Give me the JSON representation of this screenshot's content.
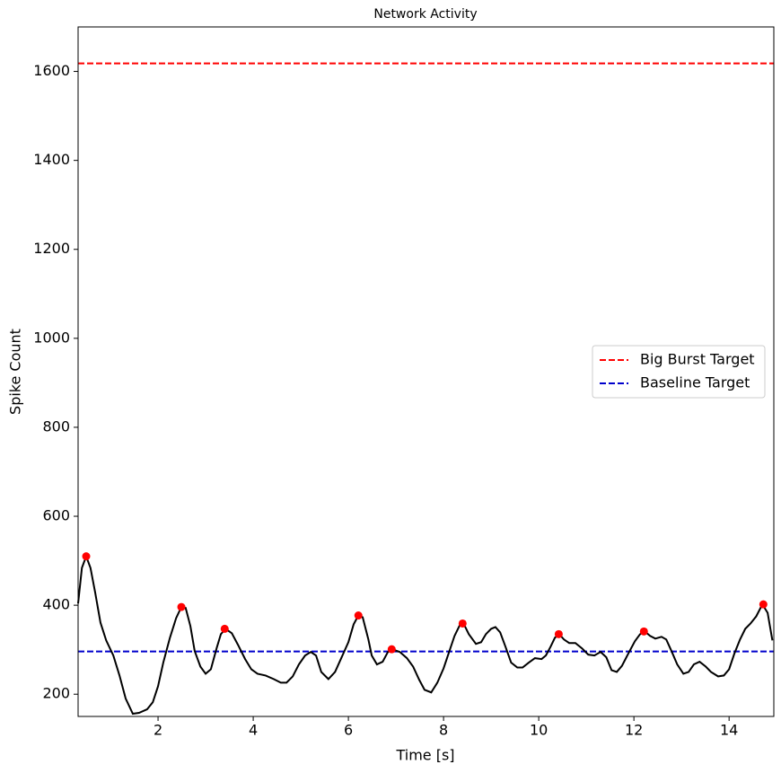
{
  "chart_data": {
    "type": "line",
    "title": "Network Activity",
    "x_label": "Time [s]",
    "y_label": "Spike Count",
    "x": [
      0.32,
      0.4,
      0.49,
      0.58,
      0.68,
      0.79,
      0.91,
      1.06,
      1.19,
      1.32,
      1.47,
      1.6,
      1.77,
      1.89,
      2.0,
      2.11,
      2.25,
      2.38,
      2.49,
      2.58,
      2.68,
      2.77,
      2.89,
      3.0,
      3.11,
      3.23,
      3.32,
      3.42,
      3.55,
      3.68,
      3.83,
      3.96,
      4.09,
      4.26,
      4.43,
      4.58,
      4.7,
      4.83,
      4.96,
      5.09,
      5.21,
      5.32,
      5.43,
      5.58,
      5.72,
      5.85,
      6.0,
      6.11,
      6.21,
      6.3,
      6.42,
      6.49,
      6.6,
      6.72,
      6.83,
      6.92,
      7.08,
      7.23,
      7.36,
      7.49,
      7.6,
      7.74,
      7.87,
      8.0,
      8.11,
      8.23,
      8.34,
      8.42,
      8.53,
      8.68,
      8.79,
      8.89,
      9.0,
      9.09,
      9.19,
      9.3,
      9.42,
      9.55,
      9.66,
      9.79,
      9.92,
      10.06,
      10.15,
      10.25,
      10.34,
      10.43,
      10.53,
      10.64,
      10.77,
      10.91,
      11.04,
      11.17,
      11.3,
      11.42,
      11.53,
      11.64,
      11.75,
      11.89,
      12.02,
      12.13,
      12.23,
      12.34,
      12.45,
      12.58,
      12.68,
      12.79,
      12.91,
      13.04,
      13.15,
      13.26,
      13.38,
      13.51,
      13.62,
      13.77,
      13.89,
      14.0,
      14.11,
      14.23,
      14.34,
      14.45,
      14.57,
      14.7,
      14.81,
      14.91
    ],
    "values": [
      404,
      484,
      510,
      484,
      428,
      361,
      321,
      287,
      242,
      190,
      156,
      158,
      166,
      182,
      218,
      271,
      327,
      371,
      396,
      394,
      353,
      297,
      262,
      246,
      256,
      303,
      335,
      347,
      337,
      311,
      279,
      256,
      246,
      242,
      234,
      226,
      226,
      240,
      267,
      287,
      295,
      287,
      250,
      234,
      250,
      281,
      317,
      357,
      377,
      373,
      323,
      287,
      267,
      273,
      295,
      301,
      295,
      281,
      262,
      232,
      210,
      204,
      226,
      258,
      293,
      331,
      355,
      359,
      335,
      313,
      317,
      335,
      347,
      351,
      339,
      307,
      271,
      260,
      260,
      271,
      281,
      279,
      287,
      307,
      327,
      335,
      323,
      315,
      315,
      303,
      289,
      287,
      295,
      283,
      254,
      250,
      264,
      293,
      319,
      335,
      341,
      331,
      325,
      329,
      323,
      297,
      267,
      246,
      250,
      267,
      273,
      262,
      250,
      240,
      242,
      256,
      291,
      323,
      347,
      359,
      375,
      402,
      383,
      321
    ],
    "color": "#000000",
    "peaks": {
      "x": [
        0.49,
        2.49,
        3.4,
        6.21,
        6.91,
        8.4,
        10.42,
        12.21,
        14.72
      ],
      "values": [
        510,
        396,
        347,
        377,
        301,
        359,
        335,
        341,
        402
      ],
      "color": "#ff0000"
    },
    "hlines": [
      {
        "name": "Big Burst Target",
        "value": 1618,
        "color": "#ff0000"
      },
      {
        "name": "Baseline Target",
        "value": 296,
        "color": "#0000cc"
      }
    ],
    "xlim": [
      0.32,
      14.94
    ],
    "ylim": [
      150,
      1700
    ],
    "xticks": [
      2,
      4,
      6,
      8,
      10,
      12,
      14
    ],
    "yticks": [
      200,
      400,
      600,
      800,
      1000,
      1200,
      1400,
      1600
    ],
    "legend": "center right"
  }
}
